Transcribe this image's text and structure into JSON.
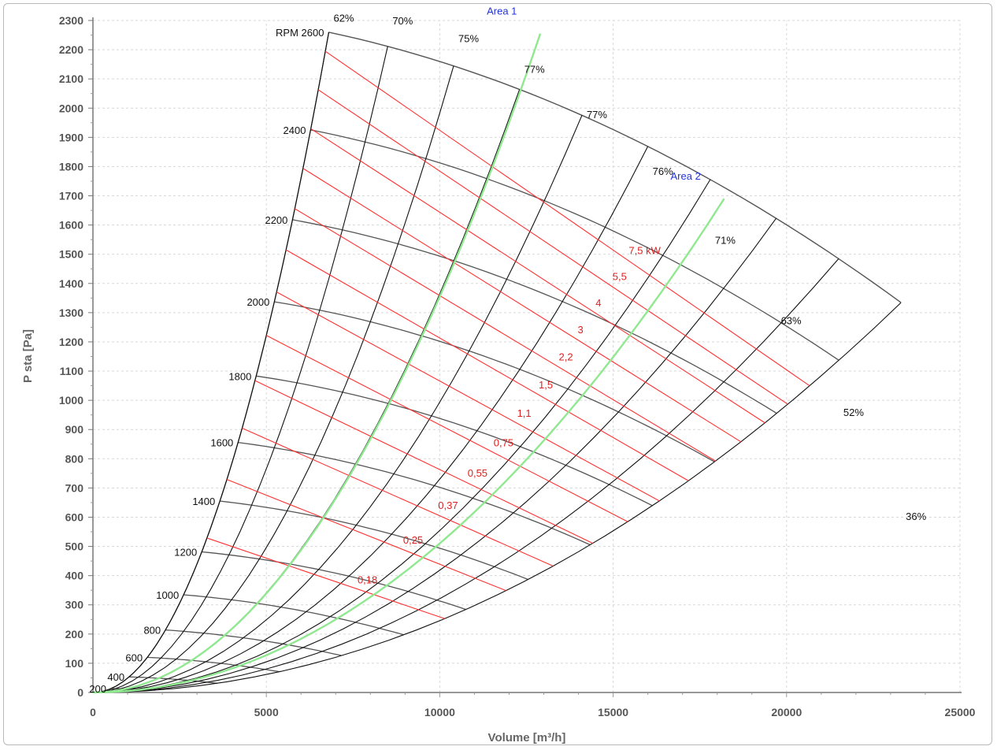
{
  "chart_data": {
    "type": "line",
    "title": "",
    "xlabel": "Volume [m³/h]",
    "ylabel": "P sta [Pa]",
    "xlim": [
      0,
      25000
    ],
    "ylim": [
      0,
      2300
    ],
    "x_ticks": [
      "0",
      "5000",
      "10000",
      "15000",
      "20000",
      "25000"
    ],
    "y_ticks": [
      "0",
      "100",
      "200",
      "300",
      "400",
      "500",
      "600",
      "700",
      "800",
      "900",
      "1000",
      "1100",
      "1200",
      "1300",
      "1400",
      "1500",
      "1600",
      "1700",
      "1800",
      "1900",
      "2000",
      "2100",
      "2200",
      "2300"
    ],
    "grid": true,
    "colors": {
      "rpm_curve": "#555555",
      "efficiency_line": "#111111",
      "power_line": "#ff3030",
      "system_curve": "#90e890",
      "system_label": "#2233dd"
    },
    "rpm_prefix": "RPM",
    "rpm_curves": [
      {
        "rpm": 200,
        "label": "200",
        "p_max": 14
      },
      {
        "rpm": 400,
        "label": "400",
        "p_max": 56
      },
      {
        "rpm": 600,
        "label": "600",
        "p_max": 125
      },
      {
        "rpm": 800,
        "label": "800",
        "p_max": 222
      },
      {
        "rpm": 1000,
        "label": "1000",
        "p_max": 347
      },
      {
        "rpm": 1200,
        "label": "1200",
        "p_max": 500
      },
      {
        "rpm": 1400,
        "label": "1400",
        "p_max": 680
      },
      {
        "rpm": 1600,
        "label": "1600",
        "p_max": 888
      },
      {
        "rpm": 1800,
        "label": "1800",
        "p_max": 1124
      },
      {
        "rpm": 2000,
        "label": "2000",
        "p_max": 1388
      },
      {
        "rpm": 2200,
        "label": "2200",
        "p_max": 1680
      },
      {
        "rpm": 2400,
        "label": "2400",
        "p_max": 1999
      },
      {
        "rpm": 2600,
        "label": "RPM 2600",
        "p_max": 2346
      }
    ],
    "efficiency_lines": [
      {
        "label": "62%",
        "q": 6800,
        "p": 2280
      },
      {
        "label": "70%",
        "q": 8500,
        "p": 2270
      },
      {
        "label": "75%",
        "q": 10400,
        "p": 2210
      },
      {
        "label": "77%",
        "q": 12300,
        "p": 2105
      },
      {
        "label": "77%",
        "q": 14100,
        "p": 1950
      },
      {
        "label": "76%",
        "q": 16000,
        "p": 1755
      },
      {
        "label": "71%",
        "q": 17800,
        "p": 1520
      },
      {
        "label": "63%",
        "q": 19700,
        "p": 1245
      },
      {
        "label": "52%",
        "q": 21500,
        "p": 930
      },
      {
        "label": "36%",
        "q": 23300,
        "p": 575
      }
    ],
    "power_lines": [
      {
        "label": "0,18"
      },
      {
        "label": "0,25"
      },
      {
        "label": "0,37"
      },
      {
        "label": "0,55"
      },
      {
        "label": "0,75"
      },
      {
        "label": "1,1"
      },
      {
        "label": "1,5"
      },
      {
        "label": "2,2"
      },
      {
        "label": "3"
      },
      {
        "label": "4"
      },
      {
        "label": "5,5"
      },
      {
        "label": "7,5 kW"
      }
    ],
    "system_curves": [
      {
        "name": "Area 1",
        "q_end": 12900,
        "p_end": 2255
      },
      {
        "name": "Area 2",
        "q_end": 18200,
        "p_end": 1690
      }
    ]
  }
}
